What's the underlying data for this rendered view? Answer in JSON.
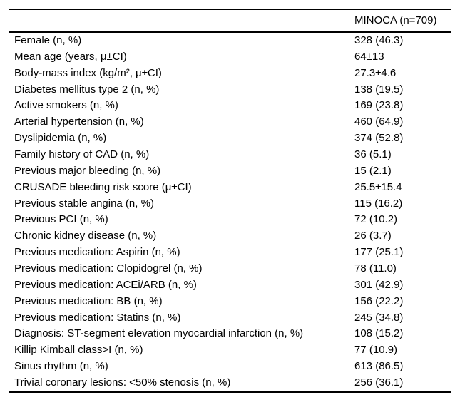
{
  "table": {
    "header": {
      "label_col": "",
      "value_col": "MINOCA (n=709)"
    },
    "rows": [
      {
        "label": "Female (n, %)",
        "value": "328 (46.3)"
      },
      {
        "label": "Mean age (years, μ±CI)",
        "value": "64±13"
      },
      {
        "label": "Body-mass index (kg/m², μ±CI)",
        "value": "27.3±4.6"
      },
      {
        "label": "Diabetes mellitus type 2 (n, %)",
        "value": "138 (19.5)"
      },
      {
        "label": "Active smokers (n, %)",
        "value": "169 (23.8)"
      },
      {
        "label": "Arterial hypertension (n, %)",
        "value": "460 (64.9)"
      },
      {
        "label": "Dyslipidemia (n, %)",
        "value": "374 (52.8)"
      },
      {
        "label": "Family history of CAD (n, %)",
        "value": "36 (5.1)"
      },
      {
        "label": "Previous major bleeding (n, %)",
        "value": "15 (2.1)"
      },
      {
        "label": "CRUSADE bleeding risk score (μ±CI)",
        "value": "25.5±15.4"
      },
      {
        "label": "Previous stable angina (n, %)",
        "value": "115 (16.2)"
      },
      {
        "label": "Previous PCI (n, %)",
        "value": "72 (10.2)"
      },
      {
        "label": "Chronic kidney disease (n, %)",
        "value": "26 (3.7)"
      },
      {
        "label": "Previous medication: Aspirin (n, %)",
        "value": "177 (25.1)"
      },
      {
        "label": "Previous medication: Clopidogrel (n, %)",
        "value": "78 (11.0)"
      },
      {
        "label": "Previous medication: ACEi/ARB (n, %)",
        "value": "301 (42.9)"
      },
      {
        "label": "Previous medication: BB (n, %)",
        "value": "156 (22.2)"
      },
      {
        "label": "Previous medication: Statins (n, %)",
        "value": "245 (34.8)"
      },
      {
        "label": "Diagnosis: ST-segment elevation myocardial infarction (n, %)",
        "value": "108 (15.2)"
      },
      {
        "label": "Killip Kimball class>I (n, %)",
        "value": "77 (10.9)"
      },
      {
        "label": "Sinus rhythm (n, %)",
        "value": "613 (86.5)"
      },
      {
        "label": "Trivial coronary lesions: <50% stenosis (n, %)",
        "value": "256 (36.1)"
      }
    ]
  }
}
